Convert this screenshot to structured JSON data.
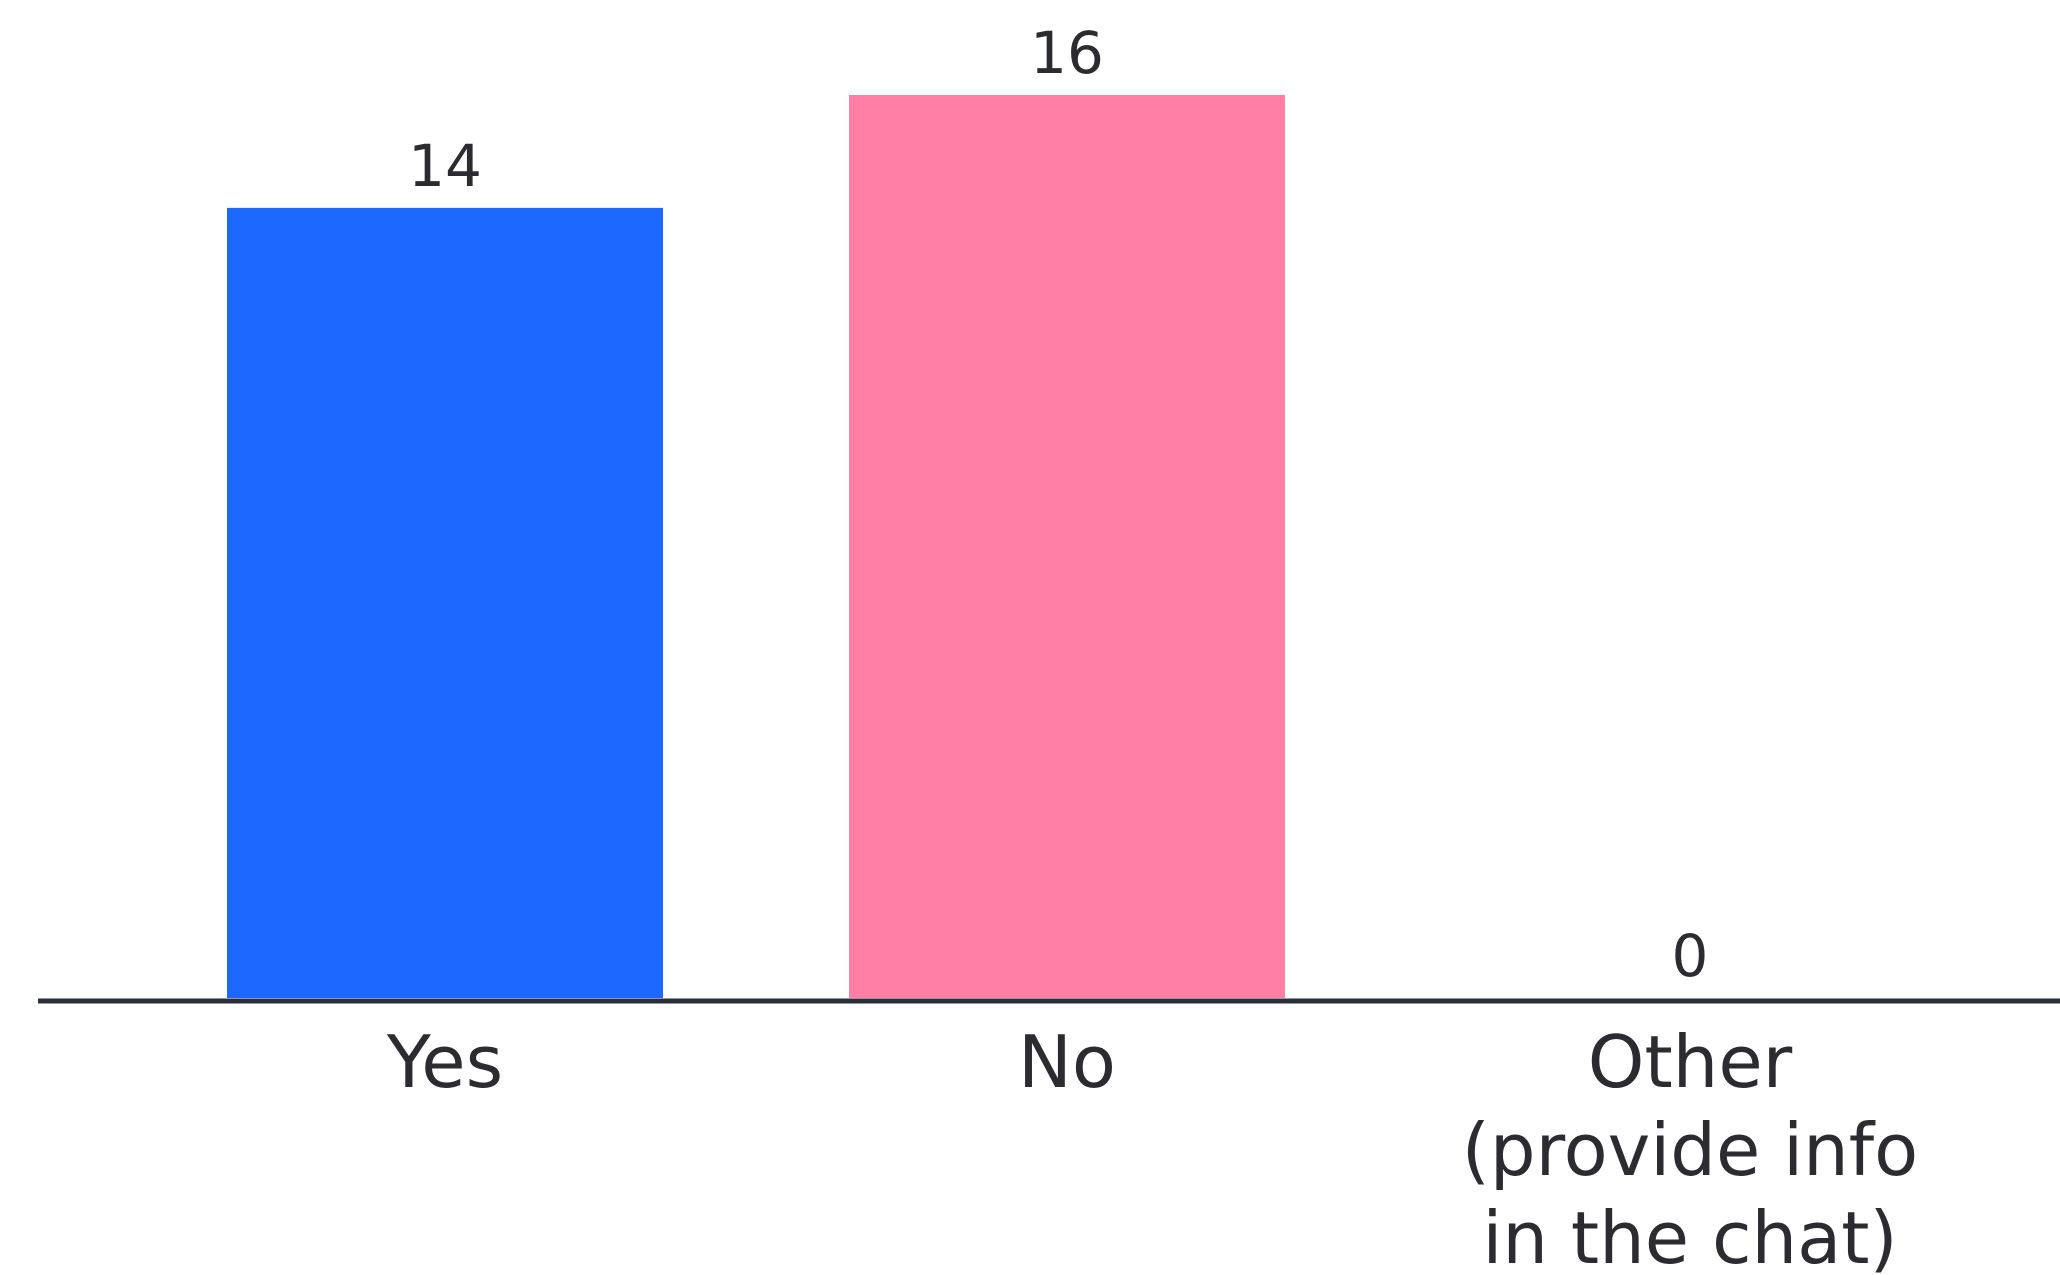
{
  "chart_data": {
    "type": "bar",
    "categories": [
      "Yes",
      "No",
      "Other\n(provide info\nin the chat)"
    ],
    "values": [
      14,
      16,
      0
    ],
    "colors": [
      "#1d69ff",
      "#ff7fa6",
      "#cccccc"
    ],
    "axis_color": "#2b2f3a",
    "title": "",
    "xlabel": "",
    "ylabel": "",
    "ylim": [
      0,
      16
    ],
    "grid": false,
    "legend": "none",
    "show_value_labels": true
  }
}
